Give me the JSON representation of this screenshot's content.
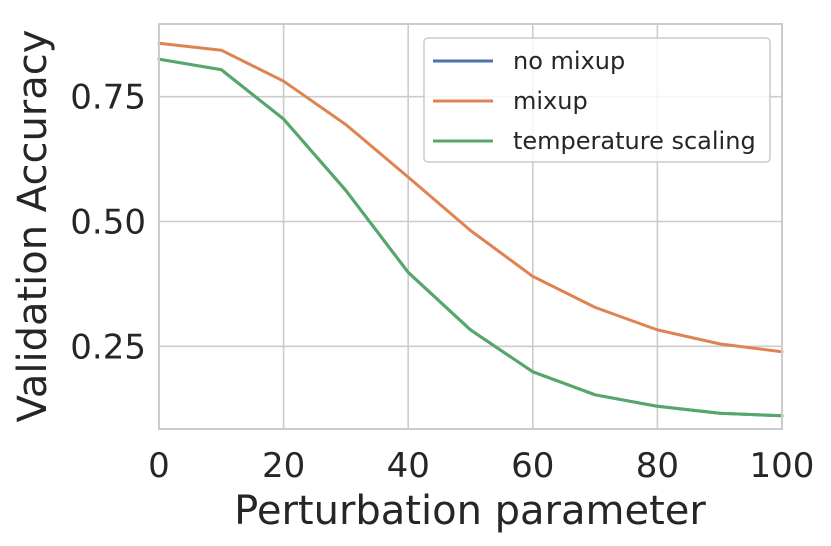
{
  "chart_data": {
    "type": "line",
    "xlabel": "Perturbation parameter",
    "ylabel": "Validation Accuracy",
    "xlim": [
      0,
      100
    ],
    "ylim": [
      0.0845,
      0.8955
    ],
    "xticks": [
      0,
      20,
      40,
      60,
      80,
      100
    ],
    "xtick_labels": [
      "0",
      "20",
      "40",
      "60",
      "80",
      "100"
    ],
    "yticks": [
      0.25,
      0.5,
      0.75
    ],
    "ytick_labels": [
      "0.25",
      "0.50",
      "0.75"
    ],
    "grid": true,
    "legend_position": "top-right",
    "x": [
      0,
      10,
      20,
      30,
      40,
      50,
      60,
      70,
      80,
      90,
      100
    ],
    "series": [
      {
        "name": "no mixup",
        "color": "#4c72b0",
        "values": [
          0.825,
          0.804,
          0.705,
          0.562,
          0.398,
          0.283,
          0.199,
          0.153,
          0.13,
          0.116,
          0.111
        ]
      },
      {
        "name": "mixup",
        "color": "#dd8452",
        "values": [
          0.857,
          0.843,
          0.781,
          0.694,
          0.589,
          0.482,
          0.39,
          0.328,
          0.283,
          0.255,
          0.239
        ]
      },
      {
        "name": "temperature scaling",
        "color": "#55a868",
        "values": [
          0.825,
          0.804,
          0.705,
          0.562,
          0.398,
          0.283,
          0.199,
          0.153,
          0.13,
          0.116,
          0.111
        ]
      }
    ]
  }
}
